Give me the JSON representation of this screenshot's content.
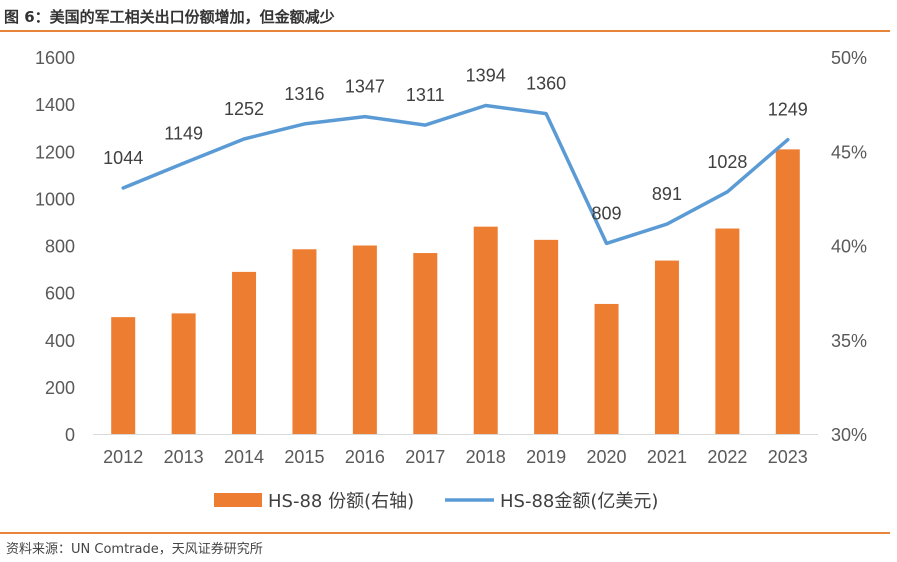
{
  "figure": {
    "title": "图 6：美国的军工相关出口份额增加，但金额减少",
    "source": "资料来源：UN Comtrade，天风证券研究所"
  },
  "colors": {
    "bar": "#ed7d31",
    "line": "#5b9bd5",
    "accent": "#e8843a",
    "axis": "#d9d9d9"
  },
  "chart_data": {
    "type": "bar+line",
    "categories": [
      "2012",
      "2013",
      "2014",
      "2015",
      "2016",
      "2017",
      "2018",
      "2019",
      "2020",
      "2021",
      "2022",
      "2023"
    ],
    "left_axis": {
      "ylim": [
        0,
        1600
      ],
      "ticks": [
        "0",
        "200",
        "400",
        "600",
        "800",
        "1000",
        "1200",
        "1400",
        "1600"
      ]
    },
    "right_axis": {
      "ylim": [
        30,
        50
      ],
      "ticks": [
        "30%",
        "35%",
        "40%",
        "45%",
        "50%"
      ]
    },
    "series": [
      {
        "name": "HS-88 份额(右轴)",
        "type": "bar",
        "axis": "right",
        "values": [
          36.2,
          36.4,
          38.6,
          39.8,
          40.0,
          39.6,
          41.0,
          40.3,
          36.9,
          39.2,
          40.9,
          45.1
        ]
      },
      {
        "name": "HS-88金额(亿美元)",
        "type": "line",
        "axis": "left",
        "values": [
          1044,
          1149,
          1252,
          1316,
          1347,
          1311,
          1394,
          1360,
          809,
          891,
          1028,
          1249
        ],
        "labels": [
          "1044",
          "1149",
          "1252",
          "1316",
          "1347",
          "1311",
          "1394",
          "1360",
          "809",
          "891",
          "1028",
          "1249"
        ]
      }
    ]
  }
}
